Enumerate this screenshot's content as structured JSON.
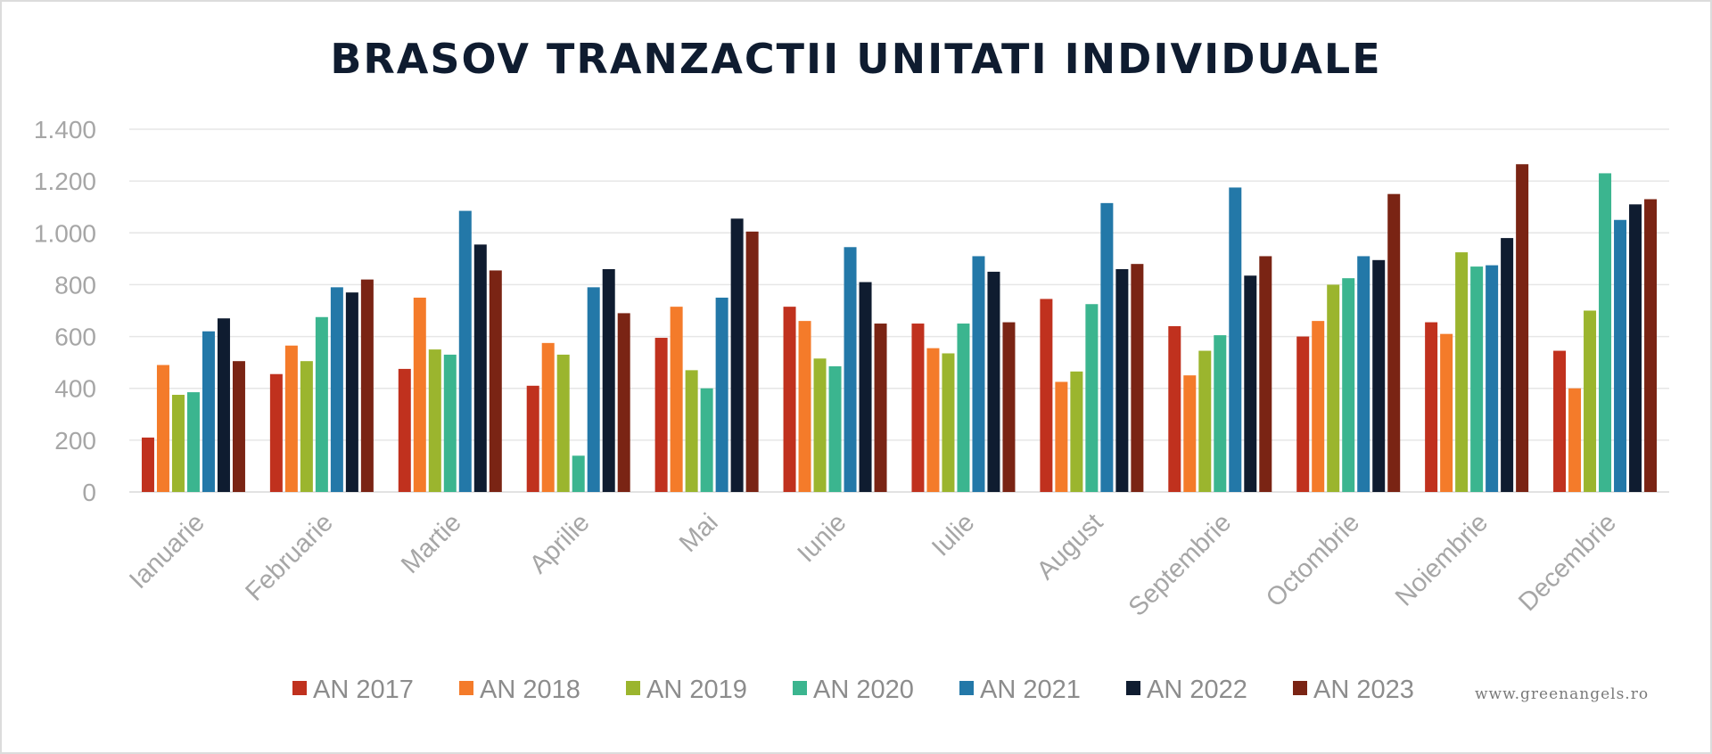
{
  "chart_data": {
    "type": "bar",
    "title": "BRASOV TRANZACTII UNITATI INDIVIDUALE",
    "xlabel": "",
    "ylabel": "",
    "ylim": [
      0,
      1400
    ],
    "yticks": [
      0,
      200,
      400,
      600,
      800,
      1000,
      1200,
      1400
    ],
    "ytick_labels": [
      "0",
      "200",
      "400",
      "600",
      "800",
      "1.000",
      "1.200",
      "1.400"
    ],
    "grid": true,
    "legend_position": "bottom",
    "categories": [
      "Ianuarie",
      "Februarie",
      "Martie",
      "Aprilie",
      "Mai",
      "Iunie",
      "Iulie",
      "August",
      "Septembrie",
      "Octombrie",
      "Noiembrie",
      "Decembrie"
    ],
    "series": [
      {
        "name": "AN 2017",
        "color": "#c0311e",
        "values": [
          210,
          455,
          475,
          410,
          595,
          715,
          650,
          745,
          640,
          600,
          655,
          545
        ]
      },
      {
        "name": "AN 2018",
        "color": "#f47b2a",
        "values": [
          490,
          565,
          750,
          575,
          715,
          660,
          555,
          425,
          450,
          660,
          610,
          400
        ]
      },
      {
        "name": "AN 2019",
        "color": "#9bb52e",
        "values": [
          375,
          505,
          550,
          530,
          470,
          515,
          535,
          465,
          545,
          800,
          925,
          700
        ]
      },
      {
        "name": "AN 2020",
        "color": "#3bb58f",
        "values": [
          385,
          675,
          530,
          140,
          400,
          485,
          650,
          725,
          605,
          825,
          870,
          1230
        ]
      },
      {
        "name": "AN 2021",
        "color": "#2378a8",
        "values": [
          620,
          790,
          1085,
          790,
          750,
          945,
          910,
          1115,
          1175,
          910,
          875,
          1050
        ]
      },
      {
        "name": "AN 2022",
        "color": "#0f1c30",
        "values": [
          670,
          770,
          955,
          860,
          1055,
          810,
          850,
          860,
          835,
          895,
          980,
          1110
        ]
      },
      {
        "name": "AN 2023",
        "color": "#7a2414",
        "values": [
          505,
          820,
          855,
          690,
          1005,
          650,
          655,
          880,
          910,
          1150,
          1265,
          1130
        ]
      }
    ],
    "watermark": "www.greenangels.ro"
  }
}
